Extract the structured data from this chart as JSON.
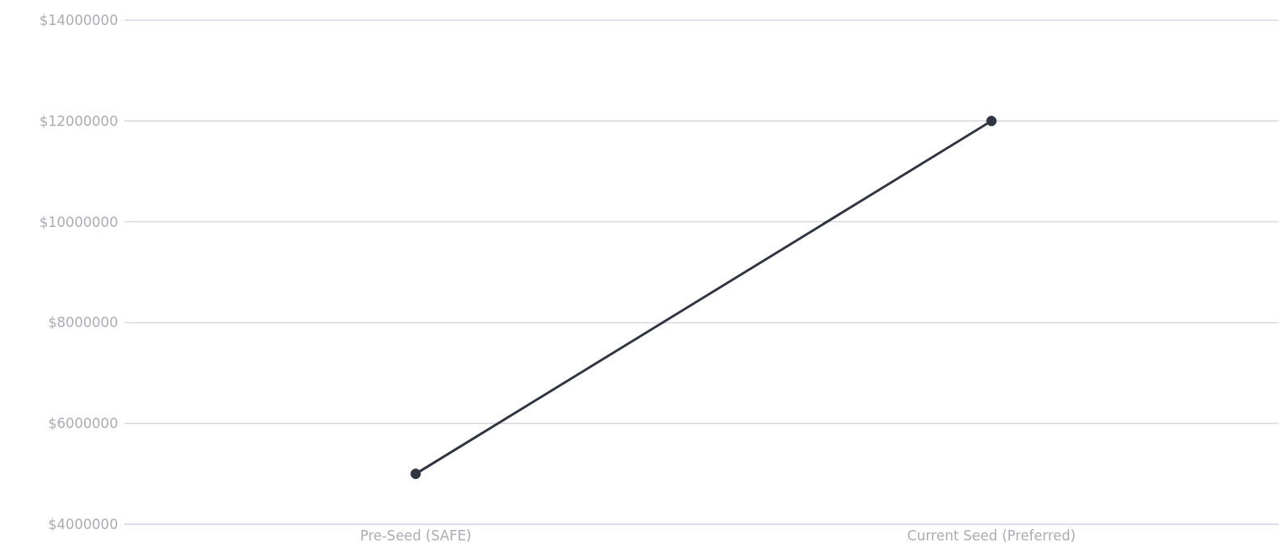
{
  "chart_data": {
    "type": "line",
    "categories": [
      "Pre-Seed (SAFE)",
      "Current Seed (Preferred)"
    ],
    "series": [
      {
        "color": "#2f3541",
        "values": [
          5000000,
          12000000
        ]
      }
    ],
    "ylim": [
      4000000,
      14000000
    ],
    "yticks": [
      {
        "value": 4000000,
        "label": "$4000000"
      },
      {
        "value": 6000000,
        "label": "$6000000"
      },
      {
        "value": 8000000,
        "label": "$8000000"
      },
      {
        "value": 10000000,
        "label": "$10000000"
      },
      {
        "value": 12000000,
        "label": "$12000000"
      },
      {
        "value": 14000000,
        "label": "$14000000"
      }
    ],
    "grid": "y",
    "marker": "circle",
    "line_style": "solid",
    "legend": false
  }
}
